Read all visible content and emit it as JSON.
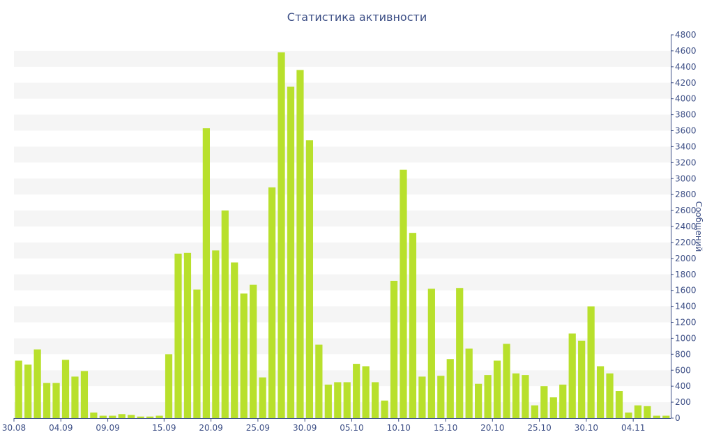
{
  "chart_data": {
    "type": "bar",
    "title": "Статистика активности",
    "ylabel": "Сообщений",
    "xlabel": "",
    "ylim": [
      0,
      4800
    ],
    "y_ticks": [
      0,
      200,
      400,
      600,
      800,
      1000,
      1200,
      1400,
      1600,
      1800,
      2000,
      2200,
      2400,
      2600,
      2800,
      3000,
      3200,
      3400,
      3600,
      3800,
      4000,
      4200,
      4400,
      4600,
      4800
    ],
    "y_axis_position": "right",
    "x_tick_labels": [
      {
        "label": "30.08",
        "index": 0
      },
      {
        "label": "04.09",
        "index": 5
      },
      {
        "label": "09.09",
        "index": 10
      },
      {
        "label": "15.09",
        "index": 16
      },
      {
        "label": "20.09",
        "index": 21
      },
      {
        "label": "25.09",
        "index": 26
      },
      {
        "label": "30.09",
        "index": 31
      },
      {
        "label": "05.10",
        "index": 36
      },
      {
        "label": "10.10",
        "index": 41
      },
      {
        "label": "15.10",
        "index": 46
      },
      {
        "label": "20.10",
        "index": 51
      },
      {
        "label": "25.10",
        "index": 56
      },
      {
        "label": "30.10",
        "index": 61
      },
      {
        "label": "04.11",
        "index": 66
      }
    ],
    "values": [
      720,
      670,
      860,
      440,
      440,
      730,
      520,
      590,
      70,
      30,
      30,
      50,
      40,
      20,
      20,
      30,
      800,
      2060,
      2070,
      1610,
      3630,
      2100,
      2600,
      1950,
      1560,
      1670,
      510,
      2890,
      4580,
      4150,
      4360,
      3480,
      920,
      420,
      450,
      450,
      680,
      650,
      450,
      220,
      1720,
      3110,
      2320,
      520,
      1620,
      530,
      740,
      1630,
      870,
      430,
      540,
      720,
      930,
      560,
      540,
      160,
      400,
      260,
      420,
      1060,
      970,
      1400,
      650,
      560,
      340,
      70,
      160,
      150,
      30,
      30
    ],
    "bar_color": "#b8e02c",
    "band_color": "#f5f5f5",
    "axis_color": "#3d4f86",
    "grid": "alternating-bands",
    "legend": "none"
  }
}
